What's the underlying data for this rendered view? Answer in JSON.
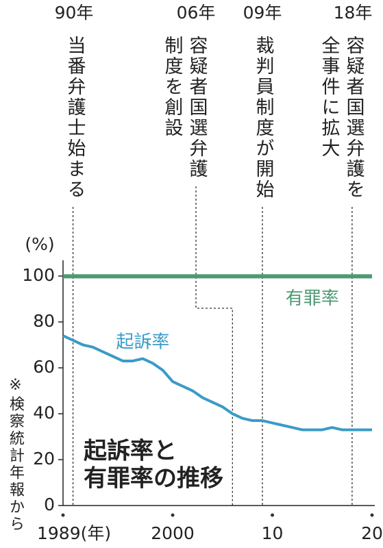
{
  "chart_data": {
    "type": "line",
    "title": [
      "起訴率と",
      "有罪率の推移"
    ],
    "ylabel": "(%)",
    "source": "※検察統計年報から",
    "x": [
      1989,
      1990,
      1991,
      1992,
      1993,
      1994,
      1995,
      1996,
      1997,
      1998,
      1999,
      2000,
      2001,
      2002,
      2003,
      2004,
      2005,
      2006,
      2007,
      2008,
      2009,
      2010,
      2011,
      2012,
      2013,
      2014,
      2015,
      2016,
      2017,
      2018,
      2019,
      2020
    ],
    "series": [
      {
        "name": "有罪率",
        "color": "#4e9a72",
        "label_at": [
          2014,
          90
        ],
        "values": [
          99.9,
          99.9,
          99.9,
          99.9,
          99.9,
          99.9,
          99.9,
          99.9,
          99.9,
          99.9,
          99.9,
          99.9,
          99.9,
          99.9,
          99.9,
          99.9,
          99.9,
          99.9,
          99.9,
          99.9,
          99.9,
          99.9,
          99.9,
          99.9,
          99.9,
          99.9,
          99.9,
          99.9,
          99.9,
          99.9,
          99.9,
          99.9
        ]
      },
      {
        "name": "起訴率",
        "color": "#3a9bc8",
        "label_at": [
          1997,
          71
        ],
        "values": [
          74,
          72,
          70,
          69,
          67,
          65,
          63,
          63,
          64,
          62,
          59,
          54,
          52,
          50,
          47,
          45,
          43,
          40,
          38,
          37,
          37,
          36,
          35,
          34,
          33,
          33,
          33,
          34,
          33,
          33,
          33,
          33
        ]
      }
    ],
    "xlim": [
      1989,
      2020
    ],
    "xticks": [
      {
        "value": 1989,
        "label": "1989(年)"
      },
      2000,
      {
        "value": 2010,
        "label": "10"
      },
      {
        "value": 2020,
        "label": "20"
      }
    ],
    "ylim": [
      0,
      100
    ],
    "yticks": [
      0,
      20,
      40,
      60,
      80,
      100
    ],
    "annotations": [
      {
        "x": 1990,
        "year": "90年",
        "lines": [
          "当番弁護士始まる"
        ]
      },
      {
        "x": 2006,
        "year": "06年",
        "lines": [
          "容疑者国選弁護",
          "制度を創設"
        ]
      },
      {
        "x": 2009,
        "year": "09年",
        "lines": [
          "裁判員制度が開始"
        ]
      },
      {
        "x": 2018,
        "year": "18年",
        "lines": [
          "容疑者国選弁護を",
          "全事件に拡大"
        ]
      }
    ]
  }
}
